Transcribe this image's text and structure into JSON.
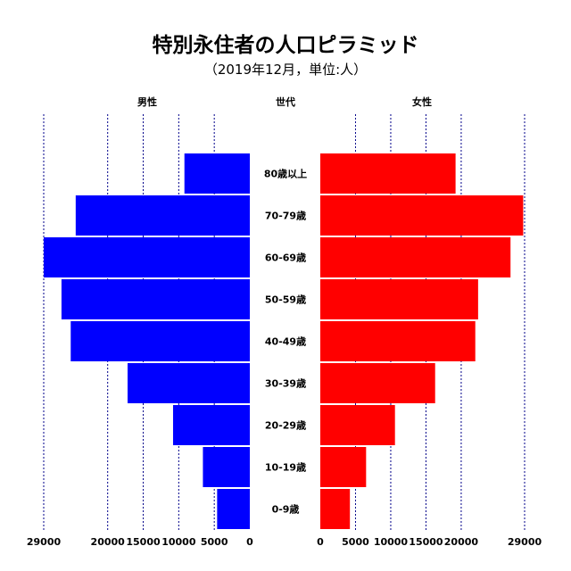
{
  "chart_data": {
    "type": "bar",
    "subtype": "population-pyramid",
    "title": "特別永住者の人口ピラミッド",
    "subtitle": "（2019年12月，単位:人）",
    "left_header": "男性",
    "center_header": "世代",
    "right_header": "女性",
    "categories": [
      "80歳以上",
      "70-79歳",
      "60-69歳",
      "50-59歳",
      "40-49歳",
      "30-39歳",
      "20-29歳",
      "10-19歳",
      "0-9歳"
    ],
    "series": [
      {
        "name": "男性",
        "color": "#0000ff",
        "values": [
          9200,
          24500,
          29000,
          26500,
          25200,
          17200,
          10800,
          6600,
          4600
        ]
      },
      {
        "name": "女性",
        "color": "#ff0000",
        "values": [
          19200,
          28800,
          27000,
          22400,
          22000,
          16300,
          10600,
          6500,
          4200
        ]
      }
    ],
    "xlim": [
      0,
      29000
    ],
    "xticks_left": [
      29000,
      20000,
      15000,
      10000,
      5000,
      0
    ],
    "xticks_right": [
      0,
      5000,
      10000,
      15000,
      20000,
      29000
    ],
    "grid": "vertical-dashed",
    "grid_color": "#00008b"
  }
}
